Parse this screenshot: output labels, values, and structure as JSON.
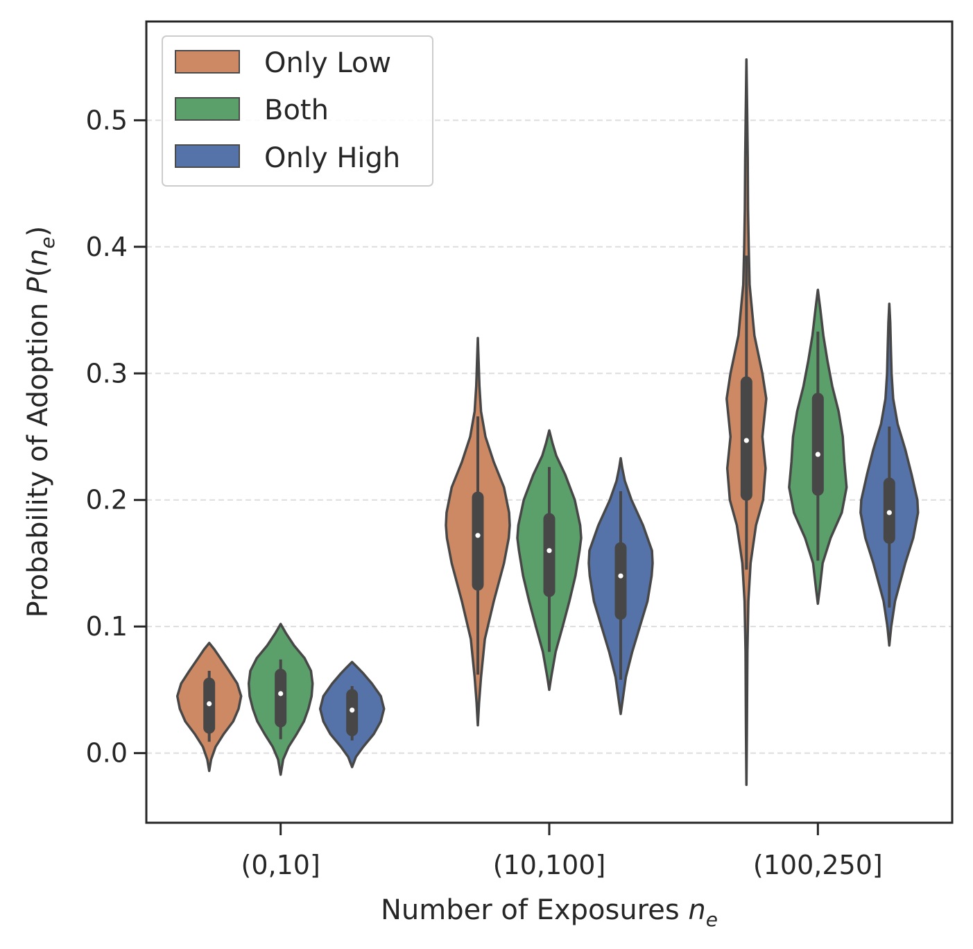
{
  "chart_data": {
    "type": "violin",
    "xlabel": "Number of Exposures",
    "xlabel_var": "n",
    "xlabel_sub": "e",
    "ylabel": "Probability of Adoption",
    "ylabel_func": "P(",
    "ylabel_var": "n",
    "ylabel_sub": "e",
    "ylabel_close": ")",
    "categories": [
      "(0,10]",
      "(10,100]",
      "(100,250]"
    ],
    "ylim": [
      -0.055,
      0.578
    ],
    "yticks": [
      0.0,
      0.1,
      0.2,
      0.3,
      0.4,
      0.5
    ],
    "ytick_labels": [
      "0.0",
      "0.1",
      "0.2",
      "0.3",
      "0.4",
      "0.5"
    ],
    "grid": "horizontal dashed",
    "legend_position": "top-left",
    "series": [
      {
        "name": "Only Low",
        "color": "#cc8963",
        "groups": [
          {
            "min": -0.014,
            "max": 0.087,
            "q1": 0.02,
            "median": 0.039,
            "q3": 0.055,
            "wlo": 0.009,
            "whi": 0.065,
            "profile": [
              [
                -0.014,
                0.0
              ],
              [
                -0.005,
                0.06
              ],
              [
                0.005,
                0.2
              ],
              [
                0.015,
                0.45
              ],
              [
                0.025,
                0.75
              ],
              [
                0.035,
                0.92
              ],
              [
                0.045,
                1.0
              ],
              [
                0.055,
                0.88
              ],
              [
                0.065,
                0.62
              ],
              [
                0.075,
                0.35
              ],
              [
                0.082,
                0.16
              ],
              [
                0.087,
                0.0
              ]
            ]
          },
          {
            "min": 0.022,
            "max": 0.328,
            "q1": 0.133,
            "median": 0.172,
            "q3": 0.202,
            "wlo": 0.062,
            "whi": 0.266,
            "profile": [
              [
                0.022,
                0.0
              ],
              [
                0.04,
                0.04
              ],
              [
                0.06,
                0.1
              ],
              [
                0.09,
                0.22
              ],
              [
                0.12,
                0.5
              ],
              [
                0.15,
                0.82
              ],
              [
                0.17,
                0.97
              ],
              [
                0.18,
                1.0
              ],
              [
                0.19,
                0.98
              ],
              [
                0.21,
                0.82
              ],
              [
                0.23,
                0.5
              ],
              [
                0.25,
                0.24
              ],
              [
                0.27,
                0.1
              ],
              [
                0.29,
                0.05
              ],
              [
                0.31,
                0.025
              ],
              [
                0.328,
                0.0
              ]
            ]
          },
          {
            "min": -0.025,
            "max": 0.548,
            "q1": 0.204,
            "median": 0.247,
            "q3": 0.293,
            "wlo": 0.145,
            "whi": 0.393,
            "profile": [
              [
                -0.025,
                0.0
              ],
              [
                0.02,
                0.015
              ],
              [
                0.08,
                0.03
              ],
              [
                0.12,
                0.06
              ],
              [
                0.15,
                0.13
              ],
              [
                0.18,
                0.3
              ],
              [
                0.2,
                0.52
              ],
              [
                0.225,
                0.6
              ],
              [
                0.25,
                0.5
              ],
              [
                0.28,
                0.62
              ],
              [
                0.3,
                0.5
              ],
              [
                0.33,
                0.25
              ],
              [
                0.37,
                0.1
              ],
              [
                0.4,
                0.07
              ],
              [
                0.43,
                0.05
              ],
              [
                0.47,
                0.04
              ],
              [
                0.51,
                0.02
              ],
              [
                0.548,
                0.0
              ]
            ]
          }
        ]
      },
      {
        "name": "Both",
        "color": "#5b9f6a",
        "groups": [
          {
            "min": -0.017,
            "max": 0.102,
            "q1": 0.025,
            "median": 0.047,
            "q3": 0.062,
            "wlo": 0.011,
            "whi": 0.074,
            "profile": [
              [
                -0.017,
                0.0
              ],
              [
                -0.005,
                0.08
              ],
              [
                0.005,
                0.25
              ],
              [
                0.015,
                0.5
              ],
              [
                0.025,
                0.73
              ],
              [
                0.035,
                0.87
              ],
              [
                0.045,
                0.97
              ],
              [
                0.055,
                1.0
              ],
              [
                0.065,
                0.95
              ],
              [
                0.075,
                0.75
              ],
              [
                0.085,
                0.42
              ],
              [
                0.095,
                0.16
              ],
              [
                0.102,
                0.0
              ]
            ]
          },
          {
            "min": 0.05,
            "max": 0.255,
            "q1": 0.128,
            "median": 0.16,
            "q3": 0.185,
            "wlo": 0.08,
            "whi": 0.226,
            "profile": [
              [
                0.05,
                0.0
              ],
              [
                0.06,
                0.06
              ],
              [
                0.08,
                0.2
              ],
              [
                0.1,
                0.42
              ],
              [
                0.12,
                0.63
              ],
              [
                0.14,
                0.82
              ],
              [
                0.16,
                0.95
              ],
              [
                0.17,
                1.0
              ],
              [
                0.18,
                0.97
              ],
              [
                0.2,
                0.8
              ],
              [
                0.22,
                0.5
              ],
              [
                0.235,
                0.22
              ],
              [
                0.245,
                0.1
              ],
              [
                0.255,
                0.0
              ]
            ]
          },
          {
            "min": 0.118,
            "max": 0.366,
            "q1": 0.208,
            "median": 0.236,
            "q3": 0.28,
            "wlo": 0.152,
            "whi": 0.333,
            "profile": [
              [
                0.118,
                0.0
              ],
              [
                0.13,
                0.06
              ],
              [
                0.15,
                0.15
              ],
              [
                0.17,
                0.4
              ],
              [
                0.19,
                0.75
              ],
              [
                0.21,
                0.9
              ],
              [
                0.23,
                0.83
              ],
              [
                0.25,
                0.78
              ],
              [
                0.27,
                0.65
              ],
              [
                0.29,
                0.45
              ],
              [
                0.31,
                0.3
              ],
              [
                0.33,
                0.17
              ],
              [
                0.35,
                0.08
              ],
              [
                0.366,
                0.0
              ]
            ]
          }
        ]
      },
      {
        "name": "Only High",
        "color": "#5573a8",
        "groups": [
          {
            "min": -0.011,
            "max": 0.072,
            "q1": 0.018,
            "median": 0.034,
            "q3": 0.046,
            "wlo": 0.01,
            "whi": 0.053,
            "profile": [
              [
                -0.011,
                0.0
              ],
              [
                -0.003,
                0.12
              ],
              [
                0.005,
                0.35
              ],
              [
                0.015,
                0.68
              ],
              [
                0.025,
                0.9
              ],
              [
                0.035,
                1.0
              ],
              [
                0.045,
                0.9
              ],
              [
                0.055,
                0.62
              ],
              [
                0.063,
                0.35
              ],
              [
                0.068,
                0.16
              ],
              [
                0.072,
                0.0
              ]
            ]
          },
          {
            "min": 0.031,
            "max": 0.233,
            "q1": 0.11,
            "median": 0.14,
            "q3": 0.162,
            "wlo": 0.058,
            "whi": 0.207,
            "profile": [
              [
                0.031,
                0.0
              ],
              [
                0.04,
                0.05
              ],
              [
                0.06,
                0.16
              ],
              [
                0.08,
                0.36
              ],
              [
                0.1,
                0.6
              ],
              [
                0.12,
                0.84
              ],
              [
                0.14,
                0.97
              ],
              [
                0.15,
                1.0
              ],
              [
                0.16,
                0.98
              ],
              [
                0.18,
                0.7
              ],
              [
                0.2,
                0.34
              ],
              [
                0.215,
                0.13
              ],
              [
                0.225,
                0.05
              ],
              [
                0.233,
                0.0
              ]
            ]
          },
          {
            "min": 0.085,
            "max": 0.355,
            "q1": 0.17,
            "median": 0.19,
            "q3": 0.213,
            "wlo": 0.115,
            "whi": 0.258,
            "profile": [
              [
                0.085,
                0.0
              ],
              [
                0.1,
                0.06
              ],
              [
                0.12,
                0.18
              ],
              [
                0.15,
                0.5
              ],
              [
                0.17,
                0.75
              ],
              [
                0.19,
                0.9
              ],
              [
                0.2,
                0.88
              ],
              [
                0.22,
                0.7
              ],
              [
                0.24,
                0.5
              ],
              [
                0.26,
                0.26
              ],
              [
                0.28,
                0.12
              ],
              [
                0.3,
                0.07
              ],
              [
                0.32,
                0.05
              ],
              [
                0.34,
                0.03
              ],
              [
                0.355,
                0.0
              ]
            ]
          }
        ]
      }
    ]
  }
}
